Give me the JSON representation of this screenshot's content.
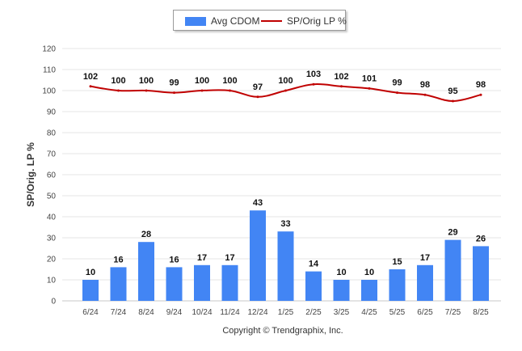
{
  "chart_data": {
    "type": "bar+line",
    "categories": [
      "6/24",
      "7/24",
      "8/24",
      "9/24",
      "10/24",
      "11/24",
      "12/24",
      "1/25",
      "2/25",
      "3/25",
      "4/25",
      "5/25",
      "6/25",
      "7/25",
      "8/25"
    ],
    "series": [
      {
        "name": "Avg CDOM",
        "kind": "bar",
        "color": "#4285f4",
        "values": [
          10,
          16,
          28,
          16,
          17,
          17,
          43,
          33,
          14,
          10,
          10,
          15,
          17,
          29,
          26
        ]
      },
      {
        "name": "SP/Orig LP %",
        "kind": "line",
        "color": "#c00000",
        "values": [
          102,
          100,
          100,
          99,
          100,
          100,
          97,
          100,
          103,
          102,
          101,
          99,
          98,
          95,
          98
        ]
      }
    ],
    "ylabel": "SP/Orig. LP %",
    "ylim": [
      0,
      120
    ],
    "yticks": [
      "0",
      "10",
      "20",
      "30",
      "40",
      "50",
      "60",
      "70",
      "80",
      "90",
      "100",
      "110",
      "120"
    ],
    "legend_position": "top-center",
    "grid": true
  },
  "legend": {
    "bar_label": "Avg CDOM",
    "line_label": "SP/Orig LP %"
  },
  "footer": {
    "copyright": "Copyright © Trendgraphix, Inc."
  }
}
